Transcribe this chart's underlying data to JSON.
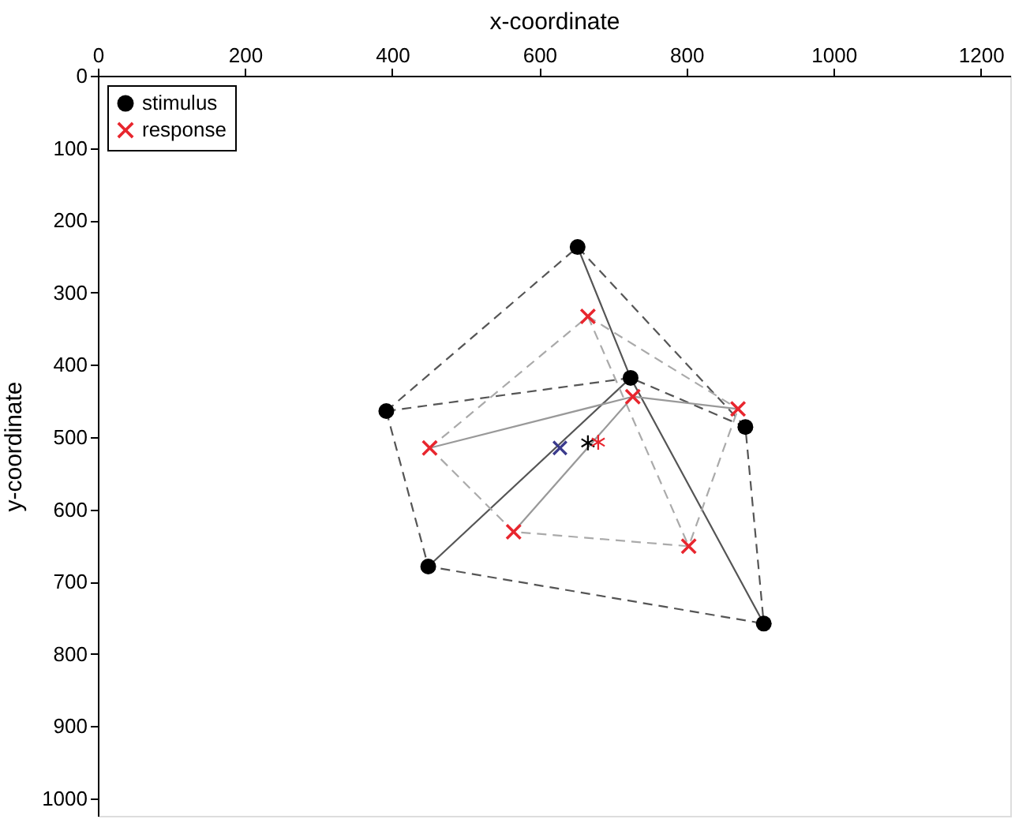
{
  "chart_data": {
    "type": "scatter",
    "xlabel": "x-coordinate",
    "ylabel": "y-coordinate",
    "xlim": [
      0,
      1240
    ],
    "ylim": [
      1024,
      0
    ],
    "xticks": [
      0,
      200,
      400,
      600,
      800,
      1000,
      1200
    ],
    "yticks": [
      0,
      100,
      200,
      300,
      400,
      500,
      600,
      700,
      800,
      900,
      1000
    ],
    "grid": false,
    "legend": "top left",
    "series": [
      {
        "type": "line",
        "color": "#555555",
        "line_style": "dashed",
        "x": [
          392,
          652,
          880,
          905
        ],
        "values": [
          464,
          237,
          486,
          758
        ]
      },
      {
        "type": "line",
        "color": "#555555",
        "line_style": "dashed",
        "x": [
          392,
          449,
          905
        ],
        "values": [
          464,
          679,
          758
        ]
      },
      {
        "type": "line",
        "color": "#555555",
        "line_style": "dashed",
        "x": [
          392,
          724,
          880
        ],
        "values": [
          464,
          418,
          486
        ]
      },
      {
        "type": "line",
        "color": "#555555",
        "line_style": "solid",
        "x": [
          652,
          724,
          905
        ],
        "values": [
          237,
          418,
          758
        ]
      },
      {
        "type": "line",
        "color": "#555555",
        "line_style": "solid",
        "x": [
          449,
          724
        ],
        "values": [
          679,
          418
        ]
      },
      {
        "type": "line",
        "color": "#aaaaaa",
        "line_style": "dashed",
        "x": [
          451,
          666,
          870
        ],
        "values": [
          515,
          333,
          461
        ]
      },
      {
        "type": "line",
        "color": "#aaaaaa",
        "line_style": "dashed",
        "x": [
          451,
          565,
          803,
          870
        ],
        "values": [
          515,
          631,
          651,
          461
        ]
      },
      {
        "type": "line",
        "color": "#aaaaaa",
        "line_style": "dashed",
        "x": [
          666,
          803
        ],
        "values": [
          333,
          651
        ]
      },
      {
        "type": "line",
        "color": "#999999",
        "line_style": "solid",
        "x": [
          451,
          727,
          870
        ],
        "values": [
          515,
          444,
          461
        ]
      },
      {
        "type": "line",
        "color": "#999999",
        "line_style": "solid",
        "x": [
          565,
          727
        ],
        "values": [
          631,
          444
        ]
      },
      {
        "name": "stimulus",
        "color": "#000000",
        "marker": "circle",
        "x": [
          652,
          724,
          392,
          880,
          449,
          905
        ],
        "values": [
          237,
          418,
          464,
          486,
          679,
          758
        ]
      },
      {
        "name": "response",
        "color": "#e8262e",
        "marker": "cross",
        "x": [
          666,
          727,
          870,
          451,
          565,
          803
        ],
        "values": [
          333,
          444,
          461,
          515,
          631,
          651
        ]
      },
      {
        "color": "#000000",
        "marker": "star",
        "x": [
          666
        ],
        "values": [
          508
        ]
      },
      {
        "color": "#e8262e",
        "marker": "star",
        "x": [
          680
        ],
        "values": [
          507
        ]
      },
      {
        "color": "#3a3a8c",
        "marker": "cross",
        "x": [
          628
        ],
        "values": [
          515
        ]
      }
    ]
  }
}
